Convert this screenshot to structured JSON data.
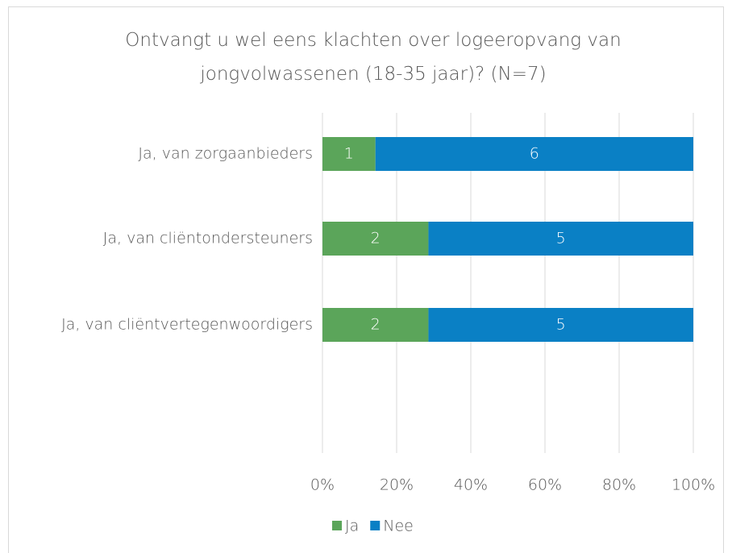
{
  "chart_data": {
    "type": "bar",
    "orientation": "horizontal",
    "stacking": "percent",
    "title": "Ontvangt u wel eens klachten over logeeropvang van jongvolwassenen (18-35 jaar)? (N=7)",
    "categories": [
      "Ja, van zorgaanbieders",
      "Ja, van cliëntondersteuners",
      "Ja, van cliëntvertegenwoordigers"
    ],
    "series": [
      {
        "name": "Ja",
        "color": "#5ba55a",
        "values": [
          1,
          2,
          2
        ]
      },
      {
        "name": "Nee",
        "color": "#0a80c5",
        "values": [
          6,
          5,
          5
        ]
      }
    ],
    "xlim": [
      0,
      100
    ],
    "xticks": [
      {
        "value": 0,
        "label": "0%"
      },
      {
        "value": 20,
        "label": "20%"
      },
      {
        "value": 40,
        "label": "40%"
      },
      {
        "value": 60,
        "label": "60%"
      },
      {
        "value": 80,
        "label": "80%"
      },
      {
        "value": 100,
        "label": "100%"
      }
    ],
    "grid": true,
    "legend": "bottom"
  }
}
